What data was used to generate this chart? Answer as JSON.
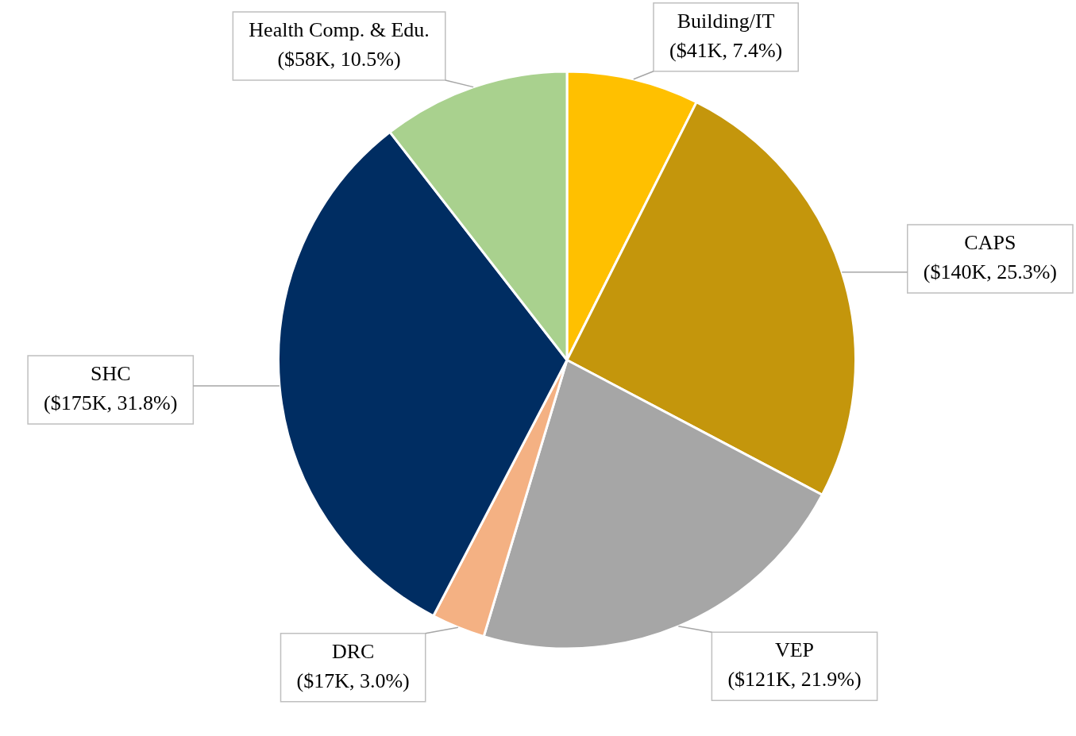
{
  "chart_data": {
    "type": "pie",
    "categories": [
      "Building/IT",
      "CAPS",
      "VEP",
      "DRC",
      "SHC",
      "Health Comp. & Edu."
    ],
    "values": [
      7.4,
      25.3,
      21.9,
      3.0,
      31.8,
      10.5
    ],
    "value_labels": [
      "($41K, 7.4%)",
      "($140K, 25.3%)",
      "($121K, 21.9%)",
      "($17K, 3.0%)",
      "($175K, 31.8%)",
      "($58K, 10.5%)"
    ],
    "colors": [
      "#ffc000",
      "#c4960c",
      "#a6a6a6",
      "#f4b183",
      "#002d62",
      "#a9d18e"
    ],
    "legend": false
  }
}
